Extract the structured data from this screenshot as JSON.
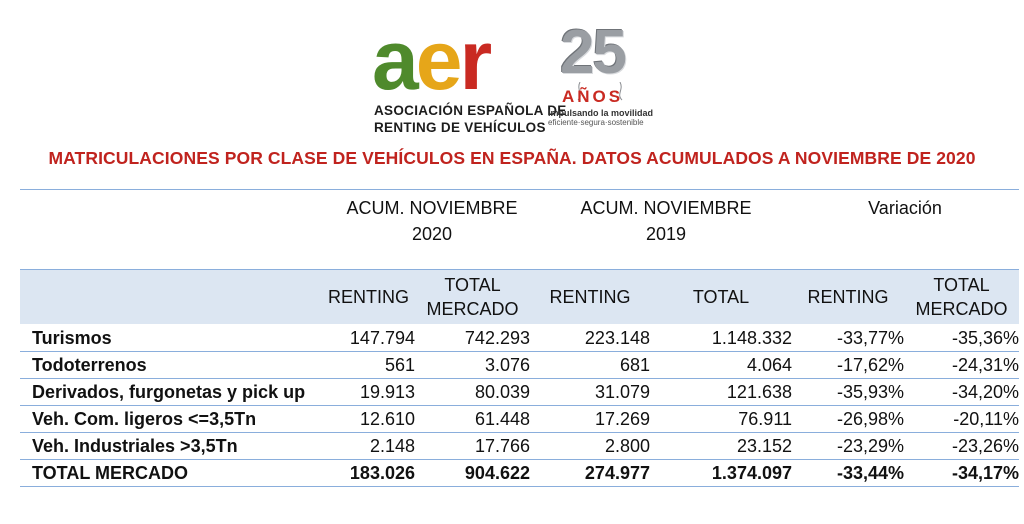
{
  "logo": {
    "letter_a": "a",
    "letter_e": "e",
    "letter_r": "r",
    "org_line1": "ASOCIACIÓN ESPAÑOLA DE",
    "org_line2": "RENTING DE VEHÍCULOS",
    "anniversary_number": "25",
    "anniversary_word": "AÑOS",
    "tagline1": "Impulsando la movilidad",
    "tagline2": "eficiente·segura·sostenible",
    "colors": {
      "a": "#4f8a2c",
      "e": "#e6a619",
      "r": "#c92a22"
    }
  },
  "title": "MATRICULACIONES POR CLASE DE VEHÍCULOS EN ESPAÑA. DATOS ACUMULADOS A NOVIEMBRE DE 2020",
  "groups": {
    "g2020_line1": "ACUM. NOVIEMBRE",
    "g2020_line2": "2020",
    "g2019_line1": "ACUM. NOVIEMBRE",
    "g2019_line2": "2019",
    "variation": "Variación"
  },
  "columns": {
    "c2": "RENTING",
    "c3_line1": "TOTAL",
    "c3_line2": "MERCADO",
    "c4": "RENTING",
    "c5": "TOTAL",
    "c6": "RENTING",
    "c7_line1": "TOTAL",
    "c7_line2": "MERCADO"
  },
  "rows": [
    {
      "label": "Turismos",
      "r2020": "147.794",
      "t2020": "742.293",
      "r2019": "223.148",
      "t2019": "1.148.332",
      "vr": "-33,77%",
      "vt": "-35,36%"
    },
    {
      "label": "Todoterrenos",
      "r2020": "561",
      "t2020": "3.076",
      "r2019": "681",
      "t2019": "4.064",
      "vr": "-17,62%",
      "vt": "-24,31%"
    },
    {
      "label": "Derivados, furgonetas y pick up",
      "r2020": "19.913",
      "t2020": "80.039",
      "r2019": "31.079",
      "t2019": "121.638",
      "vr": "-35,93%",
      "vt": "-34,20%"
    },
    {
      "label": "Veh. Com. ligeros <=3,5Tn",
      "r2020": "12.610",
      "t2020": "61.448",
      "r2019": "17.269",
      "t2019": "76.911",
      "vr": "-26,98%",
      "vt": "-20,11%"
    },
    {
      "label": "Veh. Industriales >3,5Tn",
      "r2020": "2.148",
      "t2020": "17.766",
      "r2019": "2.800",
      "t2019": "23.152",
      "vr": "-23,29%",
      "vt": "-23,26%"
    }
  ],
  "total": {
    "label": "TOTAL MERCADO",
    "r2020": "183.026",
    "t2020": "904.622",
    "r2019": "274.977",
    "t2019": "1.374.097",
    "vr": "-33,44%",
    "vt": "-34,17%"
  },
  "colors": {
    "title": "#c0231e",
    "header_band": "#dce6f2",
    "rule": "#8aaedc"
  }
}
